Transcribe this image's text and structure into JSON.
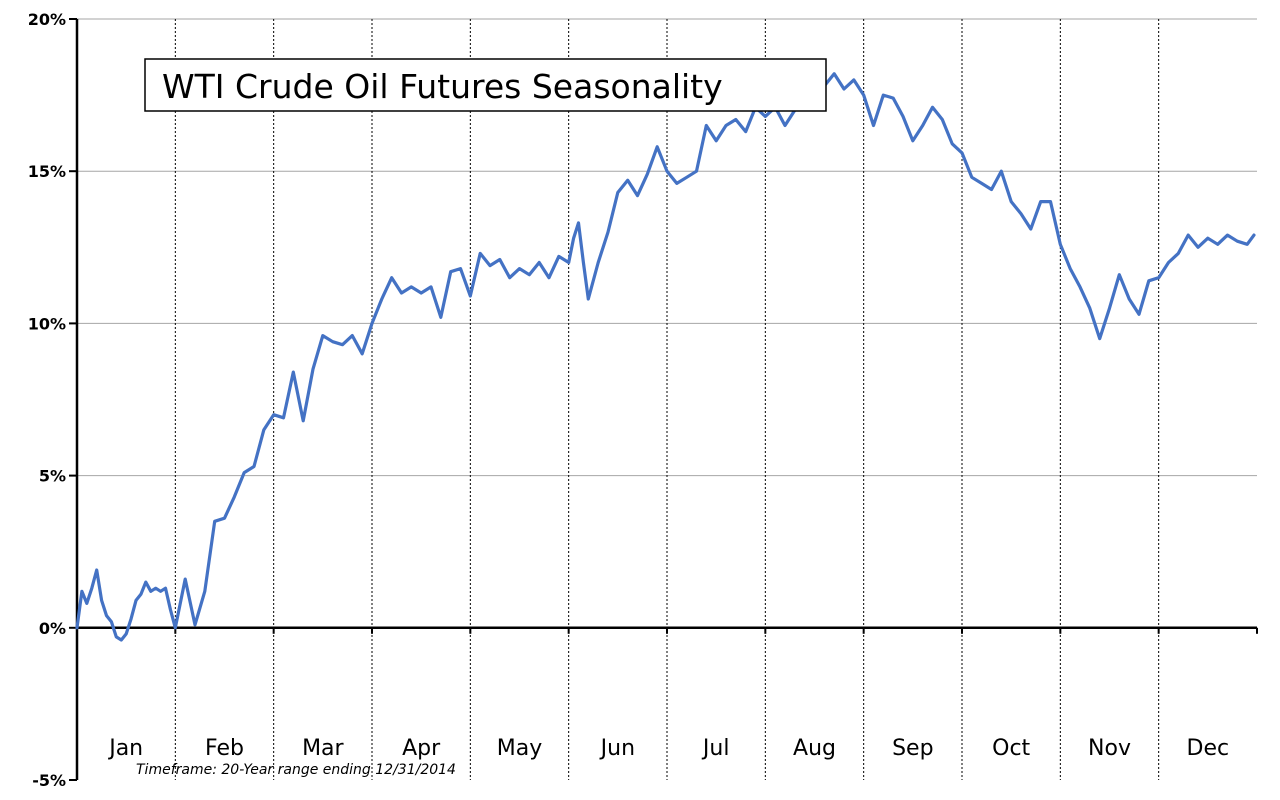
{
  "chart_data": {
    "type": "line",
    "title": "WTI Crude Oil Futures Seasonality",
    "annotation": "Timeframe: 20-Year range ending 12/31/2014",
    "xlabel": "",
    "ylabel": "",
    "ylim": [
      -5,
      20
    ],
    "yticks": [
      -5,
      0,
      5,
      10,
      15,
      20
    ],
    "ytick_labels": [
      "-5%",
      "0%",
      "5%",
      "10%",
      "15%",
      "20%"
    ],
    "months": [
      "Jan",
      "Feb",
      "Mar",
      "Apr",
      "May",
      "Jun",
      "Jul",
      "Aug",
      "Sep",
      "Oct",
      "Nov",
      "Dec"
    ],
    "grid": {
      "horizontal": true,
      "vertical_month_separators": true
    },
    "line_color": "#4472C4",
    "series": [
      {
        "x": [
          0.0,
          0.05,
          0.1,
          0.15,
          0.2,
          0.25,
          0.3,
          0.35,
          0.4,
          0.45,
          0.5,
          0.55,
          0.6,
          0.65,
          0.7,
          0.75,
          0.8,
          0.85,
          0.9,
          0.95,
          1.0,
          1.1,
          1.2,
          1.3,
          1.4,
          1.5,
          1.6,
          1.7,
          1.8,
          1.9,
          2.0,
          2.1,
          2.2,
          2.3,
          2.4,
          2.5,
          2.6,
          2.7,
          2.8,
          2.9,
          3.0,
          3.1,
          3.2,
          3.3,
          3.4,
          3.5,
          3.6,
          3.7,
          3.8,
          3.9,
          4.0,
          4.1,
          4.2,
          4.3,
          4.4,
          4.5,
          4.6,
          4.7,
          4.8,
          4.9,
          5.0,
          5.05,
          5.1,
          5.15,
          5.2,
          5.3,
          5.4,
          5.5,
          5.6,
          5.7,
          5.8,
          5.9,
          6.0,
          6.1,
          6.2,
          6.3,
          6.4,
          6.5,
          6.6,
          6.7,
          6.8,
          6.9,
          7.0,
          7.1,
          7.2,
          7.3,
          7.4,
          7.5,
          7.6,
          7.7,
          7.8,
          7.9,
          8.0,
          8.1,
          8.2,
          8.3,
          8.4,
          8.5,
          8.6,
          8.7,
          8.8,
          8.9,
          9.0,
          9.1,
          9.2,
          9.3,
          9.4,
          9.5,
          9.6,
          9.7,
          9.8,
          9.9,
          10.0,
          10.1,
          10.2,
          10.3,
          10.4,
          10.5,
          10.6,
          10.7,
          10.8,
          10.9,
          11.0,
          11.1,
          11.2,
          11.3,
          11.4,
          11.5,
          11.6,
          11.7,
          11.8,
          11.9,
          11.97
        ],
        "y": [
          0.0,
          1.2,
          0.8,
          1.3,
          1.9,
          0.9,
          0.4,
          0.2,
          -0.3,
          -0.4,
          -0.2,
          0.3,
          0.9,
          1.1,
          1.5,
          1.2,
          1.3,
          1.2,
          1.3,
          0.6,
          0.0,
          1.6,
          0.1,
          1.2,
          3.5,
          3.6,
          4.3,
          5.1,
          5.3,
          6.5,
          7.0,
          6.9,
          8.4,
          6.8,
          8.5,
          9.6,
          9.4,
          9.3,
          9.6,
          9.0,
          10.0,
          10.8,
          11.5,
          11.0,
          11.2,
          11.0,
          11.2,
          10.2,
          11.7,
          11.8,
          10.9,
          12.3,
          11.9,
          12.1,
          11.5,
          11.8,
          11.6,
          12.0,
          11.5,
          12.2,
          12.0,
          12.8,
          13.3,
          12.0,
          10.8,
          12.0,
          13.0,
          14.3,
          14.7,
          14.2,
          14.9,
          15.8,
          15.0,
          14.6,
          14.8,
          15.0,
          16.5,
          16.0,
          16.5,
          16.7,
          16.3,
          17.1,
          16.8,
          17.1,
          16.5,
          17.0,
          17.3,
          17.6,
          17.8,
          18.2,
          17.7,
          18.0,
          17.5,
          16.5,
          17.5,
          17.4,
          16.8,
          16.0,
          16.5,
          17.1,
          16.7,
          15.9,
          15.6,
          14.8,
          14.6,
          14.4,
          15.0,
          14.0,
          13.6,
          13.1,
          14.0,
          14.0,
          12.6,
          11.8,
          11.2,
          10.5,
          9.5,
          10.5,
          11.6,
          10.8,
          10.3,
          11.4,
          11.5,
          12.0,
          12.3,
          12.9,
          12.5,
          12.8,
          12.6,
          12.9,
          12.7,
          12.6,
          12.9
        ]
      }
    ]
  }
}
